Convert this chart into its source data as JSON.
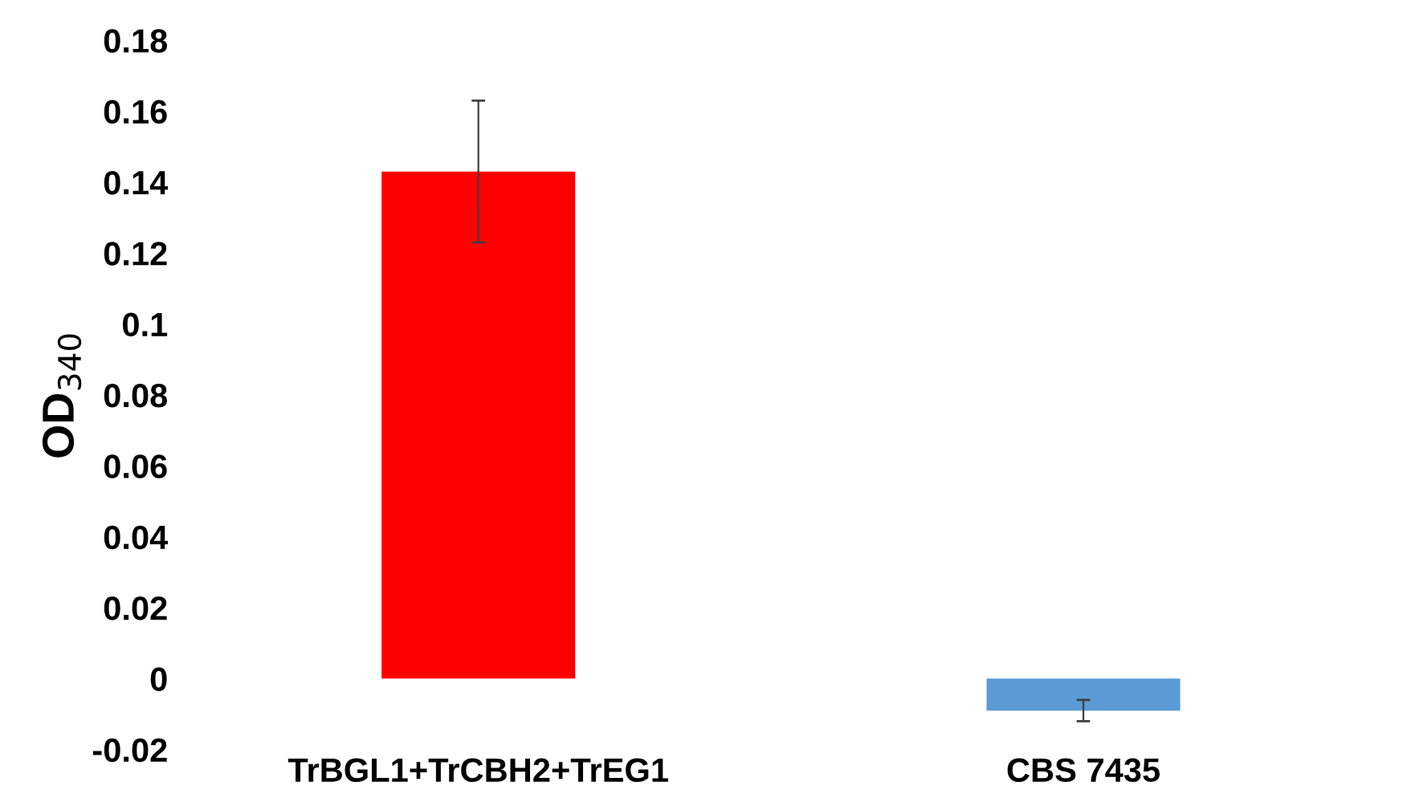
{
  "chart_data": {
    "type": "bar",
    "ylabel": "OD$_{340}$",
    "categories": [
      "TrBGL1+TrCBH2+TrEG1",
      "CBS 7435"
    ],
    "values": [
      0.143,
      -0.009
    ],
    "colors": [
      "#ff0000",
      "#5b9bd5"
    ],
    "errors": [
      0.02,
      0.003
    ],
    "ylim": [
      -0.02,
      0.18
    ],
    "yticks": [
      {
        "value": -0.02,
        "label": "-0.02"
      },
      0,
      0.02,
      0.04,
      0.06,
      0.08,
      0.1,
      0.12,
      0.14,
      0.16,
      0.18
    ],
    "grid": false,
    "legend": false
  }
}
